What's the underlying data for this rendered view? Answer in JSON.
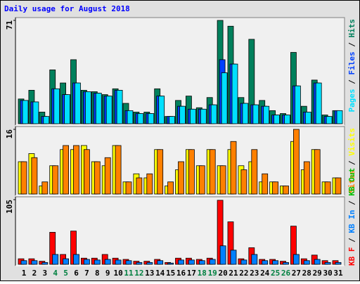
{
  "chart_data": {
    "type": "bar",
    "title": "Daily usage for August 2018",
    "categories": [
      "1",
      "2",
      "3",
      "4",
      "5",
      "6",
      "7",
      "8",
      "9",
      "10",
      "11",
      "12",
      "13",
      "14",
      "15",
      "16",
      "17",
      "18",
      "19",
      "20",
      "21",
      "22",
      "23",
      "24",
      "25",
      "26",
      "27",
      "28",
      "29",
      "30",
      "31"
    ],
    "category_colors": [
      "#000000",
      "#000000",
      "#000000",
      "#008040",
      "#008040",
      "#000000",
      "#000000",
      "#000000",
      "#000000",
      "#000000",
      "#008040",
      "#008040",
      "#000000",
      "#000000",
      "#000000",
      "#000000",
      "#000000",
      "#008040",
      "#008040",
      "#000000",
      "#000000",
      "#000000",
      "#000000",
      "#000000",
      "#008040",
      "#008040",
      "#000000",
      "#000000",
      "#000000",
      "#000000",
      "#000000"
    ],
    "legend_separator": " / ",
    "panels": [
      {
        "ylim": [
          0,
          71
        ],
        "yticks": [
          71
        ],
        "series": [
          {
            "name": "Hits",
            "color": "#00805c",
            "values": [
              17,
              23,
              8,
              37,
              28,
              44,
              23,
              22,
              20,
              24,
              14,
              8,
              8,
              24,
              5,
              16,
              19,
              11,
              18,
              71,
              67,
              18,
              58,
              16,
              9,
              7,
              49,
              12,
              30,
              6,
              9
            ]
          },
          {
            "name": "Files",
            "color": "#0040ff",
            "values": [
              16,
              15,
              5,
              24,
              20,
              28,
              22,
              21,
              19,
              23,
              9,
              7,
              7,
              19,
              5,
              12,
              10,
              10,
              13,
              44,
              41,
              14,
              13,
              12,
              6,
              6,
              26,
              8,
              28,
              5,
              9
            ]
          },
          {
            "name": "Pages",
            "color": "#00e0ff",
            "values": [
              16,
              15,
              5,
              24,
              20,
              28,
              22,
              21,
              19,
              23,
              9,
              7,
              7,
              19,
              5,
              12,
              10,
              10,
              13,
              35,
              41,
              14,
              13,
              12,
              6,
              6,
              26,
              8,
              28,
              5,
              9
            ]
          }
        ]
      },
      {
        "ylim": [
          0,
          16
        ],
        "yticks": [
          16
        ],
        "series": [
          {
            "name": "Visits",
            "color": "#ffff00",
            "values": [
              8,
              10,
              2,
              7,
              11,
              11,
              12,
              8,
              7,
              12,
              3,
              5,
              4,
              11,
              2,
              6,
              11,
              7,
              11,
              7,
              11,
              7,
              8,
              3,
              3,
              2,
              13,
              6,
              11,
              3,
              4
            ]
          },
          {
            "name": "Sites",
            "color": "#ff8000",
            "values": [
              8,
              9,
              3,
              7,
              12,
              12,
              11,
              8,
              9,
              12,
              3,
              4,
              5,
              11,
              3,
              8,
              11,
              7,
              11,
              7,
              13,
              6,
              11,
              5,
              3,
              2,
              16,
              8,
              11,
              3,
              4
            ]
          }
        ]
      },
      {
        "ylim": [
          0,
          105
        ],
        "yticks": [
          105
        ],
        "series": [
          {
            "name": "KB F",
            "color": "#ff0000",
            "values": [
              9,
              9,
              5,
              52,
              16,
              54,
              10,
              10,
              16,
              10,
              8,
              5,
              5,
              8,
              3,
              10,
              10,
              8,
              10,
              104,
              69,
              9,
              27,
              8,
              8,
              5,
              62,
              9,
              15,
              6,
              6
            ]
          },
          {
            "name": "KB In",
            "color": "#0080ff",
            "values": [
              6,
              6,
              3,
              16,
              9,
              16,
              8,
              7,
              8,
              7,
              6,
              3,
              3,
              6,
              2,
              7,
              7,
              6,
              8,
              30,
              23,
              7,
              16,
              6,
              6,
              3,
              16,
              6,
              8,
              3,
              3
            ]
          },
          {
            "name": "KB Out",
            "color": "#00c000"
          }
        ]
      }
    ]
  }
}
